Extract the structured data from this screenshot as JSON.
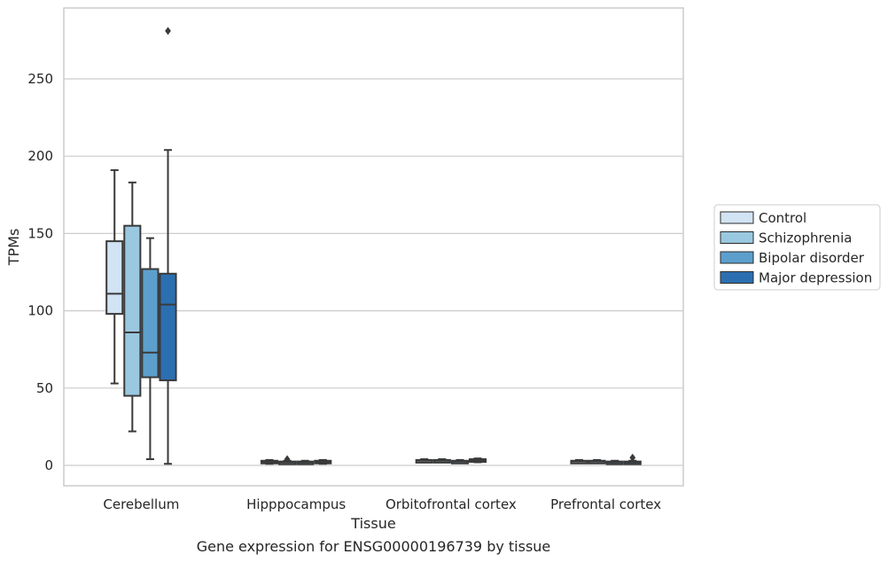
{
  "chart_data": {
    "type": "boxplot",
    "caption": "Gene expression for ENSG00000196739 by tissue",
    "xlabel": "Tissue",
    "ylabel": "TPMs",
    "ylim": [
      -13,
      296
    ],
    "yticks": [
      0,
      50,
      100,
      150,
      200,
      250
    ],
    "grid": "horizontal",
    "legend_position": "right",
    "categories": [
      "Cerebellum",
      "Hipppocampus",
      "Orbitofrontal cortex",
      "Prefrontal cortex"
    ],
    "series": [
      {
        "name": "Control",
        "color": "#d2e3f3",
        "boxes": [
          {
            "min": 53,
            "q1": 98,
            "median": 111,
            "q3": 145,
            "max": 191,
            "outliers": []
          },
          {
            "min": 1,
            "q1": 1.5,
            "median": 2,
            "q3": 3,
            "max": 3.5,
            "outliers": []
          },
          {
            "min": 2,
            "q1": 2.5,
            "median": 3,
            "q3": 3.5,
            "max": 4,
            "outliers": []
          },
          {
            "min": 1.5,
            "q1": 2,
            "median": 2.5,
            "q3": 3,
            "max": 3.5,
            "outliers": []
          }
        ]
      },
      {
        "name": "Schizophrenia",
        "color": "#9ac8e0",
        "boxes": [
          {
            "min": 22,
            "q1": 45,
            "median": 86,
            "q3": 155,
            "max": 183,
            "outliers": []
          },
          {
            "min": 1,
            "q1": 1.5,
            "median": 2,
            "q3": 2.5,
            "max": 3,
            "outliers": [
              4
            ]
          },
          {
            "min": 2,
            "q1": 2.5,
            "median": 3,
            "q3": 3.5,
            "max": 4,
            "outliers": []
          },
          {
            "min": 1.5,
            "q1": 2,
            "median": 2.5,
            "q3": 3,
            "max": 3.5,
            "outliers": []
          }
        ]
      },
      {
        "name": "Bipolar disorder",
        "color": "#5c9fcd",
        "boxes": [
          {
            "min": 4,
            "q1": 57,
            "median": 73,
            "q3": 127,
            "max": 147,
            "outliers": []
          },
          {
            "min": 1,
            "q1": 1.5,
            "median": 2,
            "q3": 2.5,
            "max": 3,
            "outliers": []
          },
          {
            "min": 1.5,
            "q1": 2,
            "median": 2.5,
            "q3": 3,
            "max": 3.5,
            "outliers": []
          },
          {
            "min": 1,
            "q1": 1.5,
            "median": 2,
            "q3": 2.5,
            "max": 3,
            "outliers": []
          }
        ]
      },
      {
        "name": "Major depression",
        "color": "#2c6fb0",
        "boxes": [
          {
            "min": 1,
            "q1": 55,
            "median": 104,
            "q3": 124,
            "max": 204,
            "outliers": [
              281
            ]
          },
          {
            "min": 1,
            "q1": 1.5,
            "median": 2,
            "q3": 3,
            "max": 3.5,
            "outliers": []
          },
          {
            "min": 2,
            "q1": 2.5,
            "median": 3,
            "q3": 4,
            "max": 4.5,
            "outliers": []
          },
          {
            "min": 1,
            "q1": 1.5,
            "median": 2,
            "q3": 2.5,
            "max": 3,
            "outliers": [
              5
            ]
          }
        ]
      }
    ]
  }
}
